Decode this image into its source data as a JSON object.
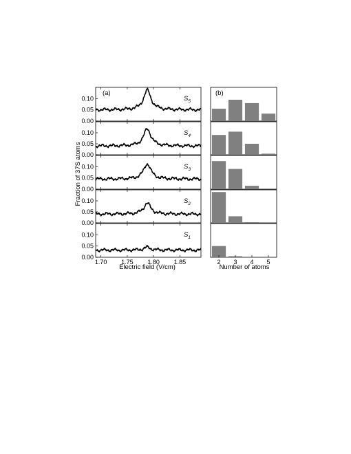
{
  "chart_data": [
    {
      "type": "line",
      "panel_label": "(a)",
      "xlabel": "Electric field (V/cm)",
      "ylabel": "Fraction of 37S atoms",
      "xlim": [
        1.69,
        1.89
      ],
      "ylim": [
        0,
        0.15
      ],
      "x_ticks": [
        "1.70",
        "1.75",
        "1.80",
        "1.85"
      ],
      "y_ticks": [
        "0.00",
        "0.05",
        "0.10"
      ],
      "series": [
        {
          "name": "S",
          "sub": "5",
          "baseline": 0.05,
          "peak_x": 1.788,
          "peak_height": 0.088,
          "width": 0.0085
        },
        {
          "name": "S",
          "sub": "4",
          "baseline": 0.04,
          "peak_x": 1.788,
          "peak_height": 0.078,
          "width": 0.0085
        },
        {
          "name": "S",
          "sub": "3",
          "baseline": 0.045,
          "peak_x": 1.788,
          "peak_height": 0.068,
          "width": 0.0085
        },
        {
          "name": "S",
          "sub": "2",
          "baseline": 0.04,
          "peak_x": 1.788,
          "peak_height": 0.05,
          "width": 0.008
        },
        {
          "name": "S",
          "sub": "1",
          "baseline": 0.032,
          "peak_x": 1.788,
          "peak_height": 0.013,
          "width": 0.007
        }
      ]
    },
    {
      "type": "bar",
      "panel_label": "(b)",
      "xlabel": "Number of atoms",
      "categories": [
        "2",
        "3",
        "4",
        "5"
      ],
      "ylim": [
        0,
        0.15
      ],
      "series": [
        {
          "name": "S5",
          "values": [
            0.055,
            0.095,
            0.08,
            0.033
          ]
        },
        {
          "name": "S4",
          "values": [
            0.09,
            0.105,
            0.05,
            0.005
          ]
        },
        {
          "name": "S3",
          "values": [
            0.125,
            0.09,
            0.015,
            0.0
          ]
        },
        {
          "name": "S2",
          "values": [
            0.14,
            0.03,
            0.003,
            0.0
          ]
        },
        {
          "name": "S1",
          "values": [
            0.05,
            0.005,
            0.0,
            0.0
          ]
        }
      ]
    }
  ]
}
